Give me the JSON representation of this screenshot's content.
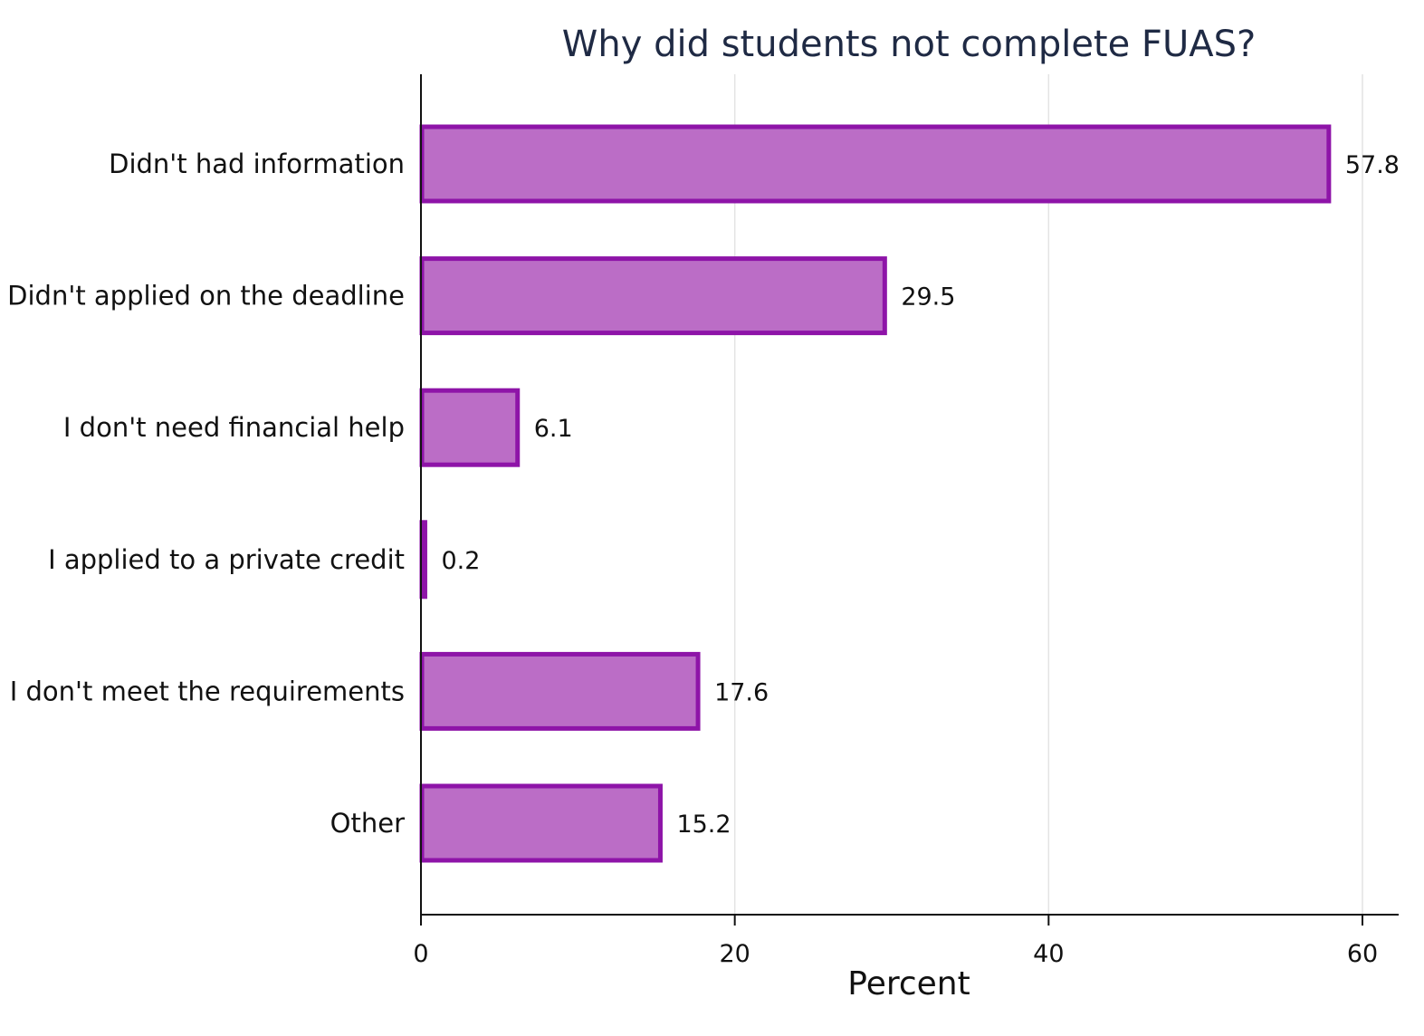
{
  "chart_data": {
    "type": "bar",
    "orientation": "horizontal",
    "title": "Why did students not complete FUAS?",
    "xlabel": "Percent",
    "ylabel": "",
    "categories": [
      "Didn't had information",
      "Didn't applied on the deadline",
      "I don't need financial help",
      "I applied to a private credit",
      "I don't meet the requirements",
      "Other"
    ],
    "values": [
      57.8,
      29.5,
      6.1,
      0.2,
      17.6,
      15.2
    ],
    "value_labels": [
      "57.8",
      "29.5",
      "6.1",
      "0.2",
      "17.6",
      "15.2"
    ],
    "xlim": [
      0,
      62
    ],
    "xticks": [
      0,
      20,
      40,
      60
    ],
    "xtick_labels": [
      "0",
      "20",
      "40",
      "60"
    ],
    "grid": "vertical",
    "legend": "none",
    "colors": {
      "bar_fill": "#bb6dc6",
      "bar_stroke": "#8e14a8",
      "grid": "#e3e3e3",
      "axis": "#111111",
      "title": "#1f2a44"
    }
  }
}
